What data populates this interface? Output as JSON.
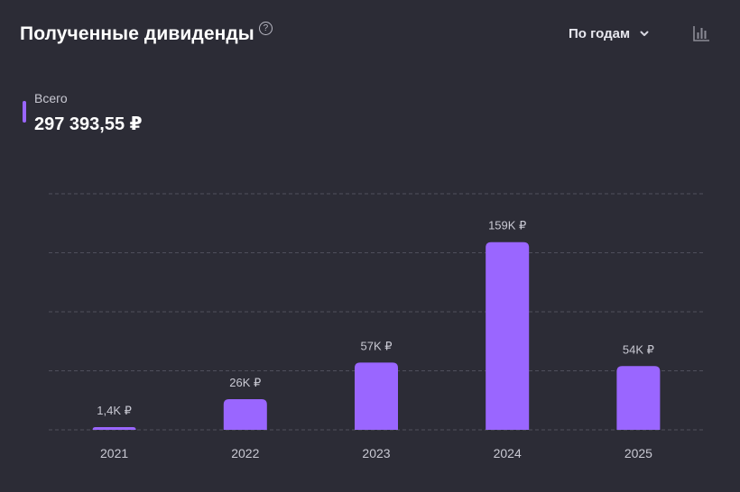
{
  "header": {
    "title": "Полученные дивиденды",
    "help_icon": "?",
    "period_label": "По годам"
  },
  "summary": {
    "label": "Всего",
    "value": "297 393,55 ₽"
  },
  "colors": {
    "background": "#2c2c36",
    "bar": "#9a66ff",
    "text": "#ffffff",
    "muted_text": "#c9c9d3",
    "grid": "#4f4f5c"
  },
  "icons": {
    "help": "help-circle-icon",
    "dropdown": "chevron-down-icon",
    "chart_type": "bar-chart-icon"
  },
  "chart_data": {
    "type": "bar",
    "categories": [
      "2021",
      "2022",
      "2023",
      "2024",
      "2025"
    ],
    "values": [
      1400,
      26000,
      57000,
      159000,
      54000
    ],
    "data_labels": [
      "1,4K ₽",
      "26K ₽",
      "57K ₽",
      "159K ₽",
      "54K ₽"
    ],
    "ylim": [
      0,
      200000
    ],
    "grid": true,
    "legend": "none"
  }
}
